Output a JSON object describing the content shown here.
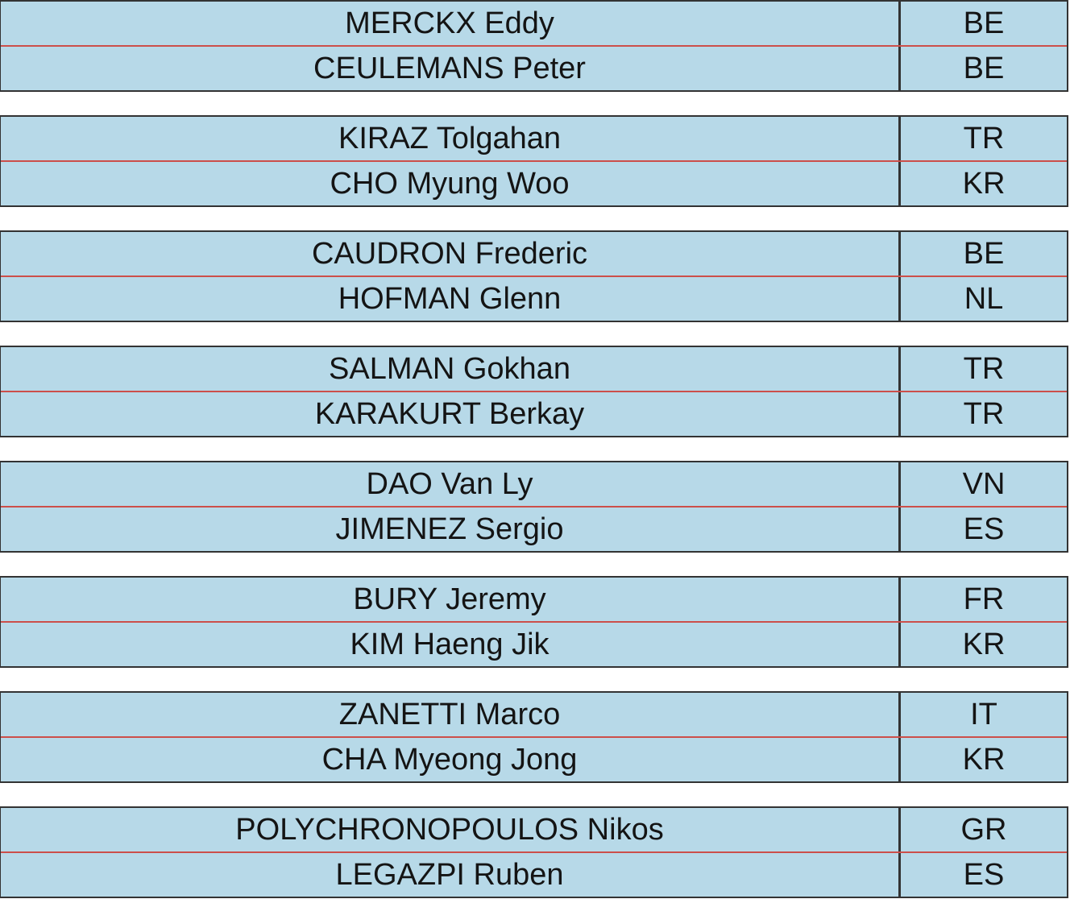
{
  "colors": {
    "cell_bg": "#b7d9e8",
    "pair_divider": "#cc4f4a",
    "border": "#333333",
    "text": "#141414"
  },
  "table": {
    "pairs": [
      {
        "rows": [
          {
            "name": "MERCKX Eddy",
            "country": "BE"
          },
          {
            "name": "CEULEMANS Peter",
            "country": "BE"
          }
        ]
      },
      {
        "rows": [
          {
            "name": "KIRAZ Tolgahan",
            "country": "TR"
          },
          {
            "name": "CHO Myung Woo",
            "country": "KR"
          }
        ]
      },
      {
        "rows": [
          {
            "name": "CAUDRON Frederic",
            "country": "BE"
          },
          {
            "name": "HOFMAN Glenn",
            "country": "NL"
          }
        ]
      },
      {
        "rows": [
          {
            "name": "SALMAN Gokhan",
            "country": "TR"
          },
          {
            "name": "KARAKURT Berkay",
            "country": "TR"
          }
        ]
      },
      {
        "rows": [
          {
            "name": "DAO Van Ly",
            "country": "VN"
          },
          {
            "name": "JIMENEZ Sergio",
            "country": "ES"
          }
        ]
      },
      {
        "rows": [
          {
            "name": "BURY Jeremy",
            "country": "FR"
          },
          {
            "name": "KIM Haeng Jik",
            "country": "KR"
          }
        ]
      },
      {
        "rows": [
          {
            "name": "ZANETTI Marco",
            "country": "IT"
          },
          {
            "name": "CHA Myeong Jong",
            "country": "KR"
          }
        ]
      },
      {
        "rows": [
          {
            "name": "POLYCHRONOPOULOS Nikos",
            "country": "GR"
          },
          {
            "name": "LEGAZPI Ruben",
            "country": "ES"
          }
        ]
      }
    ]
  }
}
